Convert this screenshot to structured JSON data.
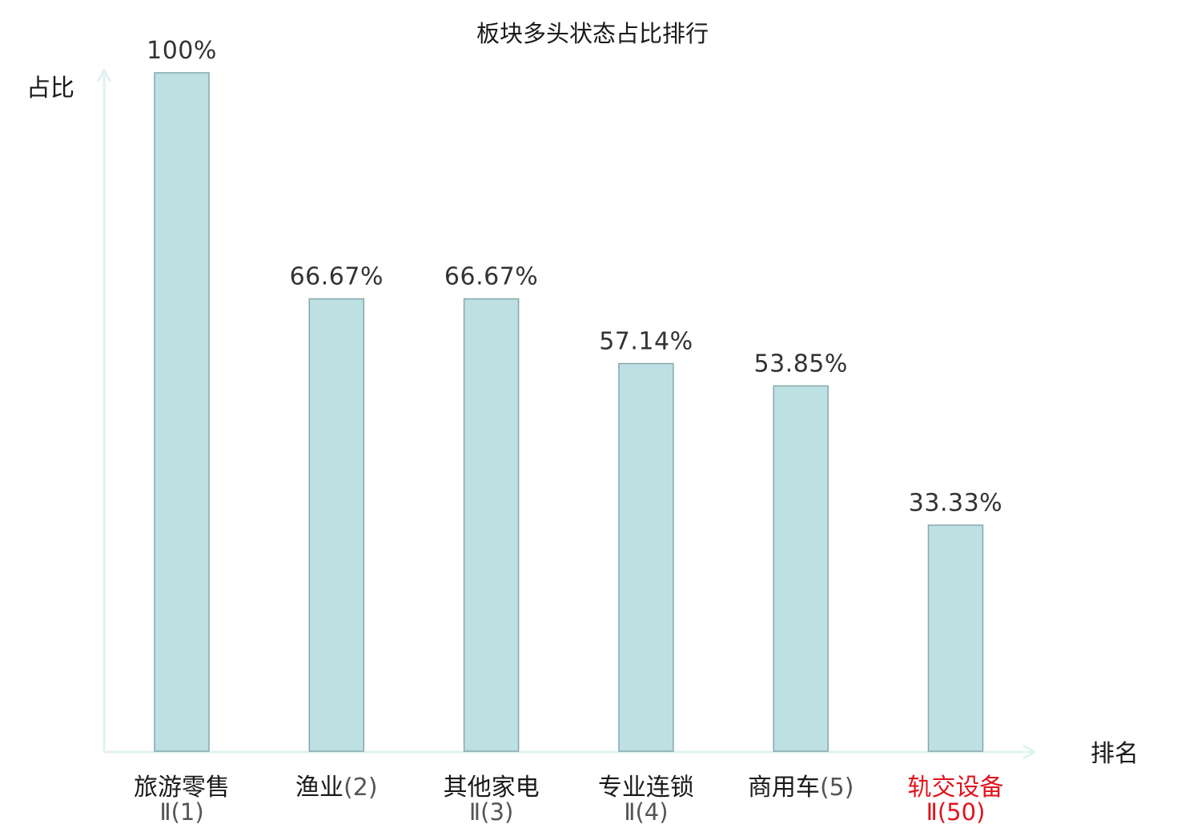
{
  "chart_data": {
    "type": "bar",
    "title": "板块多头状态占比排行",
    "ylabel": "占比",
    "xlabel": "排名",
    "ylim": [
      0,
      100
    ],
    "grid": false,
    "categories": [
      {
        "line1": "旅游零售",
        "line2": "Ⅱ(1)",
        "highlight": false
      },
      {
        "line1": "渔业(2)",
        "line2": "",
        "highlight": false
      },
      {
        "line1": "其他家电",
        "line2": "Ⅱ(3)",
        "highlight": false
      },
      {
        "line1": "专业连锁",
        "line2": "Ⅱ(4)",
        "highlight": false
      },
      {
        "line1": "商用车(5)",
        "line2": "",
        "highlight": false
      },
      {
        "line1": "轨交设备",
        "line2": "Ⅱ(50)",
        "highlight": true
      }
    ],
    "values": [
      100,
      66.67,
      66.67,
      57.14,
      53.85,
      33.33
    ],
    "value_labels": [
      "100%",
      "66.67%",
      "66.67%",
      "57.14%",
      "53.85%",
      "33.33%"
    ]
  },
  "colors": {
    "bar_fill": "#bde0e3",
    "bar_stroke": "#86a7ab",
    "axis": "#dff2ef",
    "text": "#1a1a1a",
    "highlight": "#e0141e"
  }
}
